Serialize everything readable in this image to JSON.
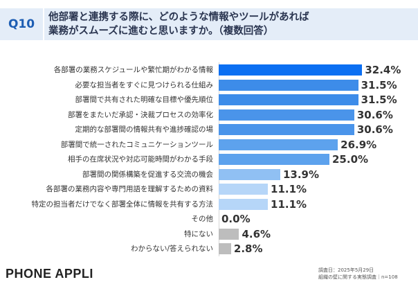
{
  "header": {
    "question_number": "Q10",
    "question_line1": "他部署と連携する際に、どのような情報やツールがあれば",
    "question_line2": "業務がスムーズに進むと思いますか。（複数回答）"
  },
  "chart_data": {
    "type": "bar",
    "orientation": "horizontal",
    "categories": [
      "各部署の業務スケジュールや繁忙期がわかる情報",
      "必要な担当者をすぐに見つけられる仕組み",
      "部署間で共有された明確な目標や優先順位",
      "部署をまたいだ承認・決裁プロセスの効率化",
      "定期的な部署間の情報共有や進捗確認の場",
      "部署間で統一されたコミュニケーションツール",
      "相手の在席状況や対応可能時間がわかる手段",
      "部署間の関係構築を促進する交流の機会",
      "各部署の業務内容や専門用語を理解するための資料",
      "特定の担当者だけでなく部署全体に情報を共有する方法",
      "その他",
      "特にない",
      "わからない/答えられない"
    ],
    "values": [
      32.4,
      31.5,
      31.5,
      30.6,
      30.6,
      26.9,
      25.0,
      13.9,
      11.1,
      11.1,
      0.0,
      4.6,
      2.8
    ],
    "value_unit": "%",
    "bar_colors": [
      "#0b6ff2",
      "#3d8ce9",
      "#3d8ce9",
      "#4a94ea",
      "#4a94ea",
      "#5da2ed",
      "#5da2ed",
      "#90c0f3",
      "#b6d6f8",
      "#b6d6f8",
      "#bdbdbd",
      "#bdbdbd",
      "#bdbdbd"
    ],
    "grid": false,
    "legend": "none"
  },
  "footer": {
    "brand": "PHONE APPLI",
    "survey_date": "調査日：2025年5月29日",
    "survey_note": "組織の壁に関する実態調査｜n=108"
  }
}
